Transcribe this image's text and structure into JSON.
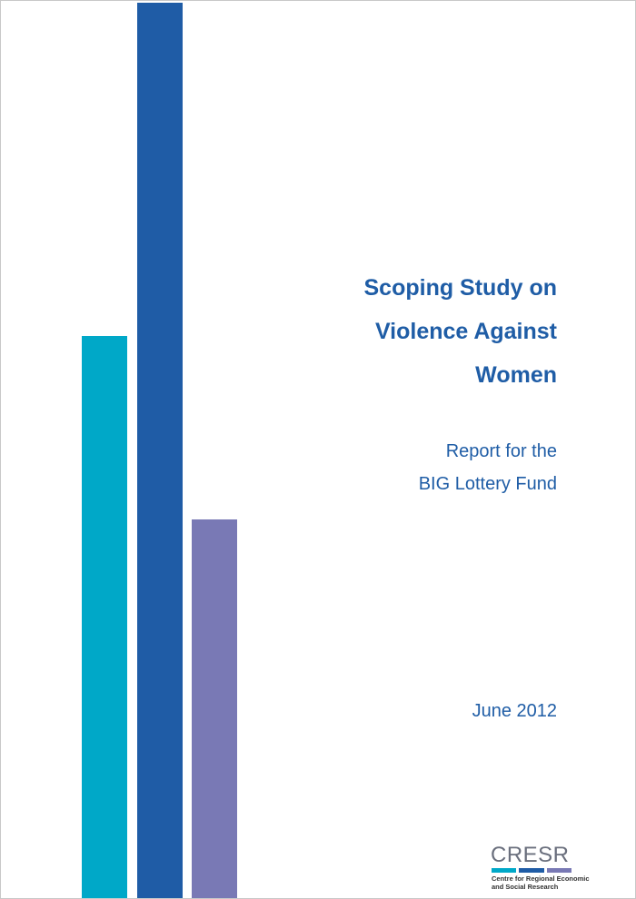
{
  "colors": {
    "title": "#1f5da6",
    "bar_cyan": "#00a8c8",
    "bar_blue": "#1f5ca6",
    "bar_purple": "#7979b5",
    "logo_text": "#6a6f7d",
    "logo_stripe_1": "#00a8c8",
    "logo_stripe_2": "#1f5ca6",
    "logo_stripe_3": "#7979b5"
  },
  "cover": {
    "title_lines": [
      "Scoping Study on",
      "Violence Against",
      "Women"
    ],
    "subtitle_lines": [
      "Report for the",
      "BIG Lottery Fund"
    ],
    "date": "June 2012"
  },
  "logo": {
    "name": "CRESR",
    "caption_lines": [
      "Centre for Regional Economic",
      "and Social Research"
    ]
  }
}
